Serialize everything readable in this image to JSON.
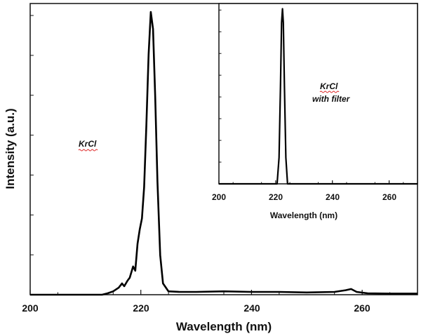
{
  "chart_data": [
    {
      "type": "line",
      "xlabel": "Wavelength (nm)",
      "ylabel": "Intensity (a.u.)",
      "xlim": [
        200,
        270
      ],
      "ylim": [
        0,
        1.03
      ],
      "xticks": [
        200,
        220,
        240,
        260
      ],
      "xtick_labels": [
        "200",
        "220",
        "240",
        "260"
      ],
      "annotation": "KrCl",
      "grid": false,
      "series": [
        {
          "x": [
            200,
            213,
            214,
            215,
            216,
            216.6,
            217,
            217.6,
            218,
            218.6,
            219,
            219.4,
            219.8,
            220.2,
            220.6,
            221,
            221.4,
            221.8,
            222.2,
            222.6,
            223,
            223.5,
            224,
            225,
            227,
            230,
            235,
            240,
            245,
            250,
            255,
            257,
            258,
            259,
            261,
            265,
            270
          ],
          "y": [
            0,
            0,
            0.005,
            0.012,
            0.025,
            0.04,
            0.03,
            0.05,
            0.06,
            0.1,
            0.085,
            0.18,
            0.23,
            0.27,
            0.38,
            0.6,
            0.85,
            1.0,
            0.94,
            0.7,
            0.4,
            0.14,
            0.04,
            0.012,
            0.01,
            0.01,
            0.012,
            0.01,
            0.01,
            0.008,
            0.01,
            0.016,
            0.02,
            0.01,
            0.005,
            0.004,
            0.004
          ]
        }
      ]
    },
    {
      "type": "line",
      "xlabel": "Wavelength (nm)",
      "ylabel": "",
      "xlim": [
        200,
        270
      ],
      "ylim": [
        0,
        1.03
      ],
      "xticks": [
        200,
        220,
        240,
        260
      ],
      "xtick_labels": [
        "200",
        "220",
        "240",
        "260"
      ],
      "annotation_lines": [
        "KrCl",
        "with filter"
      ],
      "grid": false,
      "series": [
        {
          "x": [
            200,
            220.5,
            221.2,
            221.7,
            222.1,
            222.4,
            222.7,
            223.1,
            223.6,
            224.2,
            270
          ],
          "y": [
            0,
            0,
            0.15,
            0.55,
            0.92,
            1.0,
            0.92,
            0.55,
            0.15,
            0,
            0
          ]
        }
      ]
    }
  ]
}
